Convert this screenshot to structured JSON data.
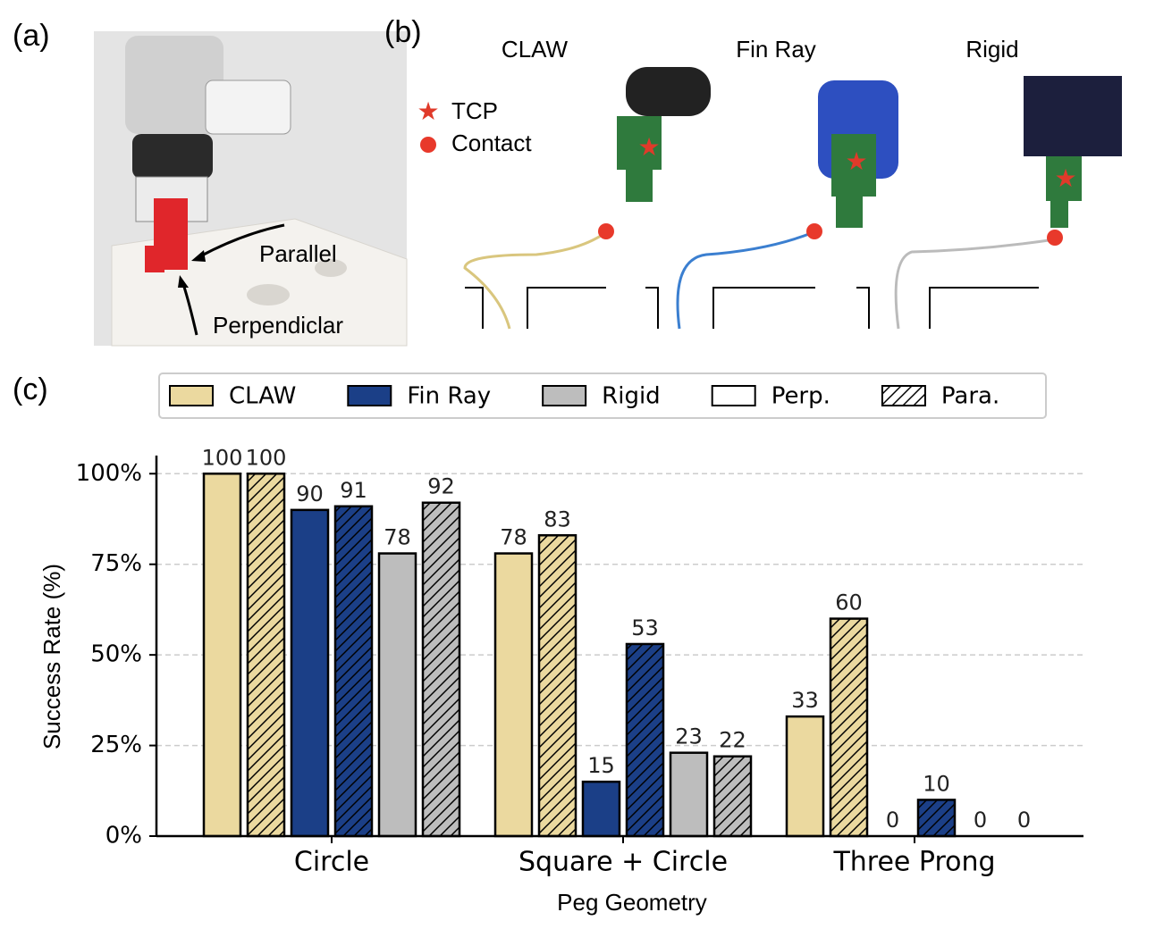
{
  "figure": {
    "panel_a": {
      "label": "(a)",
      "annotations": [
        "Parallel",
        "Perpendiclar"
      ]
    },
    "panel_b": {
      "label": "(b)",
      "grippers": [
        "CLAW",
        "Fin Ray",
        "Rigid"
      ],
      "legend": [
        "TCP",
        "Contact"
      ]
    },
    "panel_c": {
      "label": "(c)"
    }
  },
  "chart_data": {
    "type": "bar",
    "xlabel": "Peg Geometry",
    "ylabel": "Success Rate (%)",
    "categories": [
      "Circle",
      "Square + Circle",
      "Three Prong"
    ],
    "series": [
      {
        "name": "CLAW",
        "color": "#ebd99f",
        "perp": [
          100,
          78,
          33
        ],
        "para": [
          100,
          83,
          60
        ]
      },
      {
        "name": "Fin Ray",
        "color": "#1b3f87",
        "perp": [
          90,
          15,
          0
        ],
        "para": [
          91,
          53,
          10
        ]
      },
      {
        "name": "Rigid",
        "color": "#bdbdbd",
        "perp": [
          78,
          23,
          0
        ],
        "para": [
          92,
          22,
          0
        ]
      }
    ],
    "patterns": [
      {
        "name": "Perp.",
        "hatch": false
      },
      {
        "name": "Para.",
        "hatch": true
      }
    ],
    "ylim": [
      0,
      105
    ],
    "yticks": [
      {
        "value": 0,
        "label": "0%"
      },
      {
        "value": 25,
        "label": "25%"
      },
      {
        "value": 50,
        "label": "50%"
      },
      {
        "value": 75,
        "label": "75%"
      },
      {
        "value": 100,
        "label": "100%"
      }
    ],
    "grid": true
  }
}
